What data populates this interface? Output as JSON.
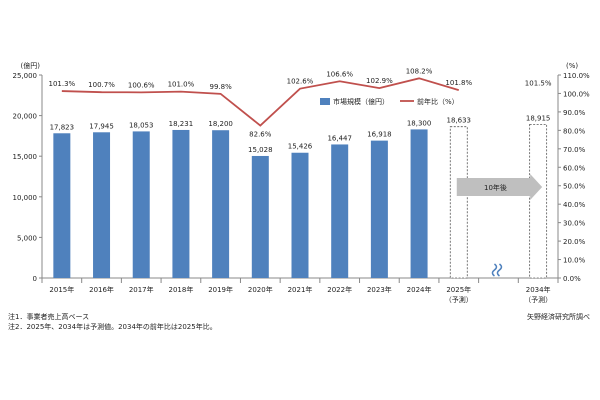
{
  "chart_data": {
    "type": "bar",
    "left_axis_unit": "(億円)",
    "right_axis_unit": "(%)",
    "left_ylim": [
      0,
      25000
    ],
    "left_ticks": [
      "0",
      "5,000",
      "10,000",
      "15,000",
      "20,000",
      "25,000"
    ],
    "right_ylim": [
      0,
      110
    ],
    "right_ticks": [
      "0.0%",
      "10.0%",
      "20.0%",
      "30.0%",
      "40.0%",
      "50.0%",
      "60.0%",
      "70.0%",
      "80.0%",
      "90.0%",
      "100.0%",
      "110.0%"
    ],
    "grid": false,
    "legend_position": "top-center",
    "categories": [
      {
        "year": "2015年",
        "sub": ""
      },
      {
        "year": "2016年",
        "sub": ""
      },
      {
        "year": "2017年",
        "sub": ""
      },
      {
        "year": "2018年",
        "sub": ""
      },
      {
        "year": "2019年",
        "sub": ""
      },
      {
        "year": "2020年",
        "sub": ""
      },
      {
        "year": "2021年",
        "sub": ""
      },
      {
        "year": "2022年",
        "sub": ""
      },
      {
        "year": "2023年",
        "sub": ""
      },
      {
        "year": "2024年",
        "sub": ""
      },
      {
        "year": "2025年",
        "sub": "（予測）"
      },
      {
        "year": "",
        "sub": ""
      },
      {
        "year": "2034年",
        "sub": "（予測）"
      }
    ],
    "bar_series": {
      "name": "市場規模（億円）",
      "color": "#4f81bd",
      "values": [
        17823,
        17945,
        18053,
        18231,
        18200,
        15028,
        15426,
        16447,
        16918,
        18300,
        18633,
        null,
        18915
      ],
      "labels": [
        "17,823",
        "17,945",
        "18,053",
        "18,231",
        "18,200",
        "15,028",
        "15,426",
        "16,447",
        "16,918",
        "18,300",
        "18,633",
        "",
        "18,915"
      ],
      "forecast_index": [
        10,
        12
      ]
    },
    "line_series": {
      "name": "前年比（%）",
      "color": "#c0504d",
      "values": [
        101.3,
        100.7,
        100.6,
        101.0,
        99.8,
        82.6,
        102.6,
        106.6,
        102.9,
        108.2,
        101.8,
        null,
        101.5
      ],
      "labels": [
        "101.3%",
        "100.7%",
        "100.6%",
        "101.0%",
        "99.8%",
        "82.6%",
        "102.6%",
        "106.6%",
        "102.9%",
        "108.2%",
        "101.8%",
        "",
        "101.5%"
      ]
    },
    "arrow_label": "10年後"
  },
  "notes": {
    "note1": "注1．事業者売上高ベース",
    "note2": "注2．2025年、2034年は予測値。2034年の前年比は2025年比。",
    "source": "矢野経済研究所調べ"
  }
}
